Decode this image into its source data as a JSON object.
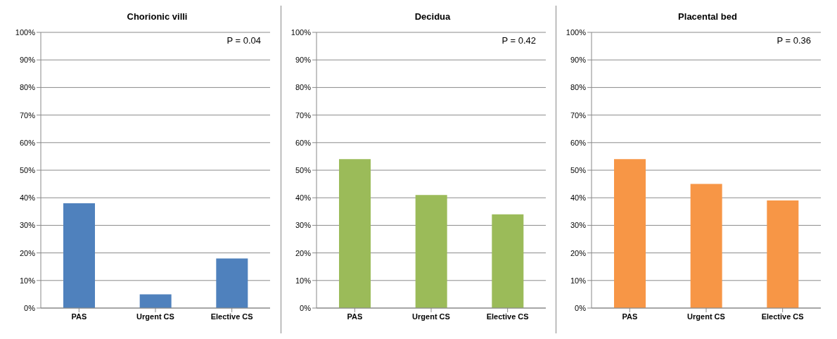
{
  "chart_data": [
    {
      "type": "bar",
      "title": "Chorionic villi",
      "categories": [
        "PAS",
        "Urgent CS",
        "Elective CS"
      ],
      "values": [
        38,
        5,
        18
      ],
      "color": "#4f81bd",
      "ylim": [
        0,
        100
      ],
      "yticks": [
        {
          "value": 0,
          "label": "0%"
        },
        {
          "value": 10,
          "label": "10%"
        },
        {
          "value": 20,
          "label": "20%"
        },
        {
          "value": 30,
          "label": "30%"
        },
        {
          "value": 40,
          "label": "40%"
        },
        {
          "value": 50,
          "label": "50%"
        },
        {
          "value": 60,
          "label": "60%"
        },
        {
          "value": 70,
          "label": "70%"
        },
        {
          "value": 80,
          "label": "80%"
        },
        {
          "value": 90,
          "label": "90%"
        },
        {
          "value": 100,
          "label": "100%"
        }
      ],
      "grid": "y",
      "annotations": [
        "P = 0.04"
      ]
    },
    {
      "type": "bar",
      "title": "Decidua",
      "categories": [
        "PAS",
        "Urgent CS",
        "Elective CS"
      ],
      "values": [
        54,
        41,
        34
      ],
      "color": "#9bbb59",
      "ylim": [
        0,
        100
      ],
      "yticks": [
        {
          "value": 0,
          "label": "0%"
        },
        {
          "value": 10,
          "label": "10%"
        },
        {
          "value": 20,
          "label": "20%"
        },
        {
          "value": 30,
          "label": "30%"
        },
        {
          "value": 40,
          "label": "40%"
        },
        {
          "value": 50,
          "label": "50%"
        },
        {
          "value": 60,
          "label": "60%"
        },
        {
          "value": 70,
          "label": "70%"
        },
        {
          "value": 80,
          "label": "80%"
        },
        {
          "value": 90,
          "label": "90%"
        },
        {
          "value": 100,
          "label": "100%"
        }
      ],
      "grid": "y",
      "annotations": [
        "P = 0.42"
      ]
    },
    {
      "type": "bar",
      "title": "Placental bed",
      "categories": [
        "PAS",
        "Urgent CS",
        "Elective CS"
      ],
      "values": [
        54,
        45,
        39
      ],
      "color": "#f79646",
      "ylim": [
        0,
        100
      ],
      "yticks": [
        {
          "value": 0,
          "label": "0%"
        },
        {
          "value": 10,
          "label": "10%"
        },
        {
          "value": 20,
          "label": "20%"
        },
        {
          "value": 30,
          "label": "30%"
        },
        {
          "value": 40,
          "label": "40%"
        },
        {
          "value": 50,
          "label": "50%"
        },
        {
          "value": 60,
          "label": "60%"
        },
        {
          "value": 70,
          "label": "70%"
        },
        {
          "value": 80,
          "label": "80%"
        },
        {
          "value": 90,
          "label": "90%"
        },
        {
          "value": 100,
          "label": "100%"
        }
      ],
      "grid": "y",
      "annotations": [
        "P = 0.36"
      ]
    }
  ]
}
